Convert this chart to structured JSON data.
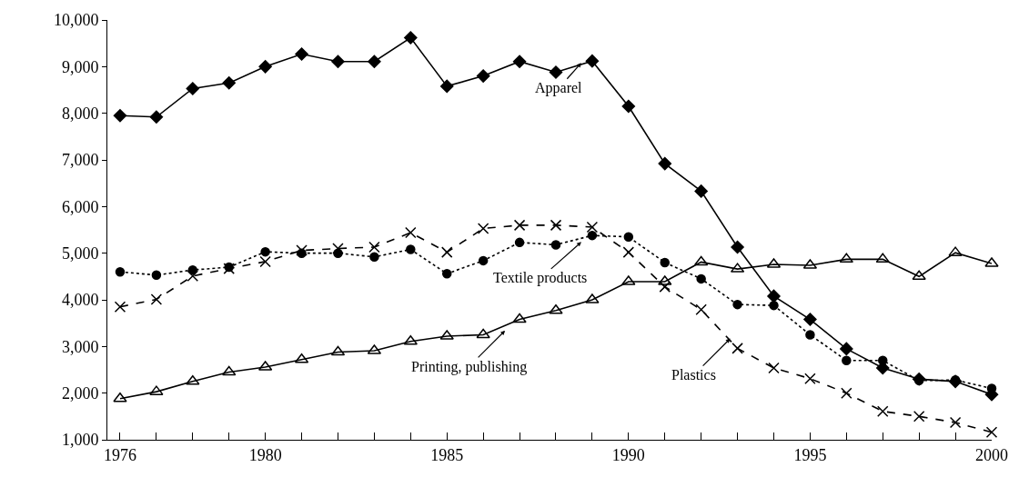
{
  "chart_data": {
    "type": "line",
    "x": [
      1976,
      1977,
      1978,
      1979,
      1980,
      1981,
      1982,
      1983,
      1984,
      1985,
      1986,
      1987,
      1988,
      1989,
      1990,
      1991,
      1992,
      1993,
      1994,
      1995,
      1996,
      1997,
      1998,
      1999,
      2000
    ],
    "series": [
      {
        "color": "#000000",
        "marker": "diamond",
        "line_style": "solid",
        "values": [
          7950,
          7920,
          8530,
          8650,
          9000,
          9270,
          9110,
          9110,
          9620,
          8580,
          8800,
          9110,
          8880,
          9120,
          8150,
          6920,
          6330,
          5130,
          4080,
          3580,
          2950,
          2540,
          2300,
          2250,
          1970
        ]
      },
      {
        "color": "#000000",
        "marker": "circle",
        "line_style": "dotted",
        "values": [
          4600,
          4530,
          4640,
          4700,
          5030,
          5000,
          5000,
          4920,
          5080,
          4560,
          4840,
          5230,
          5180,
          5380,
          5350,
          4800,
          4450,
          3900,
          3880,
          3250,
          2700,
          2700,
          2270,
          2280,
          2100
        ]
      },
      {
        "color": "#000000",
        "marker": "cross",
        "line_style": "dashed",
        "values": [
          3850,
          4010,
          4510,
          4670,
          4820,
          5060,
          5100,
          5130,
          5440,
          5020,
          5530,
          5600,
          5600,
          5560,
          5020,
          4280,
          3790,
          2960,
          2540,
          2310,
          2000,
          1610,
          1500,
          1370,
          1160
        ]
      },
      {
        "color": "#000000",
        "marker": "triangle",
        "line_style": "solid",
        "values": [
          1880,
          2030,
          2250,
          2450,
          2560,
          2720,
          2880,
          2910,
          3110,
          3220,
          3250,
          3580,
          3770,
          4000,
          4390,
          4390,
          4810,
          4660,
          4760,
          4740,
          4870,
          4870,
          4500,
          5010,
          4780
        ]
      }
    ],
    "xlim": [
      1975.65,
      2000
    ],
    "xticks": [
      1976,
      {
        "value": 1977,
        "label": null
      },
      {
        "value": 1978,
        "label": null
      },
      {
        "value": 1979,
        "label": null
      },
      1980,
      {
        "value": 1981,
        "label": null
      },
      {
        "value": 1982,
        "label": null
      },
      {
        "value": 1983,
        "label": null
      },
      {
        "value": 1984,
        "label": null
      },
      1985,
      {
        "value": 1986,
        "label": null
      },
      {
        "value": 1987,
        "label": null
      },
      {
        "value": 1988,
        "label": null
      },
      {
        "value": 1989,
        "label": null
      },
      1990,
      {
        "value": 1991,
        "label": null
      },
      {
        "value": 1992,
        "label": null
      },
      {
        "value": 1993,
        "label": null
      },
      {
        "value": 1994,
        "label": null
      },
      1995,
      {
        "value": 1996,
        "label": null
      },
      {
        "value": 1997,
        "label": null
      },
      {
        "value": 1998,
        "label": null
      },
      {
        "value": 1999,
        "label": null
      },
      2000
    ],
    "ylim": [
      1000,
      10000
    ],
    "yticks": [
      {
        "value": 1000,
        "label": "1,000"
      },
      {
        "value": 2000,
        "label": "2,000"
      },
      {
        "value": 3000,
        "label": "3,000"
      },
      {
        "value": 4000,
        "label": "4,000"
      },
      {
        "value": 5000,
        "label": "5,000"
      },
      {
        "value": 6000,
        "label": "6,000"
      },
      {
        "value": 7000,
        "label": "7,000"
      },
      {
        "value": 8000,
        "label": "8,000"
      },
      {
        "value": 9000,
        "label": "9,000"
      },
      {
        "value": 10000,
        "label": "10,000"
      }
    ],
    "annotations": [
      {
        "text": "Apparel",
        "x": 1988.7,
        "y": 9080
      },
      {
        "text": "Textile products",
        "x": 1988.7,
        "y": 5240
      },
      {
        "text": "Plastics",
        "x": 1992.8,
        "y": 3170
      },
      {
        "text": "Printing, publishing",
        "x": 1986.6,
        "y": 3340
      }
    ],
    "legend": false
  }
}
